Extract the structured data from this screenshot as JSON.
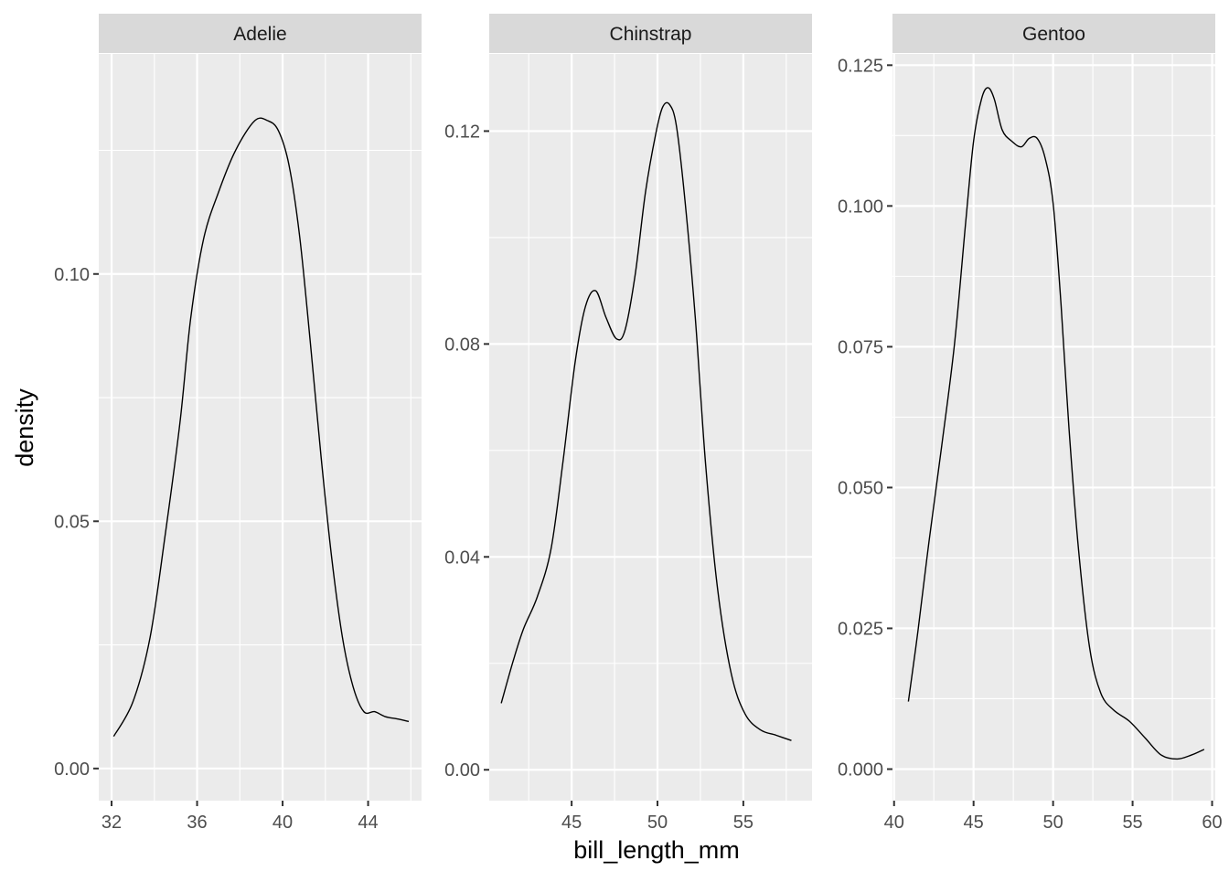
{
  "chart_data": {
    "type": "line",
    "title": "",
    "xlabel": "bill_length_mm",
    "ylabel": "density",
    "colors": {
      "panel_bg": "#EBEBEB",
      "grid": "#FFFFFF",
      "strip_bg": "#D9D9D9",
      "line": "#000000",
      "text": "#4D4D4D",
      "title_text": "#1A1A1A"
    },
    "facets": [
      {
        "label": "Adelie",
        "xlim": [
          31.4,
          46.5
        ],
        "ylim": [
          -0.0065,
          0.1445
        ],
        "x_ticks": [
          32,
          36,
          40,
          44
        ],
        "x_tick_labels": [
          "32",
          "36",
          "40",
          "44"
        ],
        "y_ticks": [
          0.0,
          0.05,
          0.1
        ],
        "y_tick_labels": [
          "0.00",
          "0.05",
          "0.10"
        ],
        "x": [
          32.1,
          33.0,
          33.8,
          34.5,
          35.2,
          35.7,
          36.3,
          37.0,
          37.8,
          38.7,
          39.3,
          39.8,
          40.3,
          40.8,
          41.3,
          41.8,
          42.3,
          42.8,
          43.3,
          43.8,
          44.3,
          44.8,
          45.4,
          45.9
        ],
        "y": [
          0.0065,
          0.0135,
          0.0265,
          0.047,
          0.07,
          0.091,
          0.107,
          0.1165,
          0.125,
          0.131,
          0.131,
          0.129,
          0.122,
          0.1075,
          0.086,
          0.063,
          0.0425,
          0.0265,
          0.0165,
          0.0115,
          0.0115,
          0.0105,
          0.01,
          0.0095
        ]
      },
      {
        "label": "Chinstrap",
        "xlim": [
          40.2,
          59.0
        ],
        "ylim": [
          -0.0058,
          0.1345
        ],
        "x_ticks": [
          45,
          50,
          55
        ],
        "x_tick_labels": [
          "45",
          "50",
          "55"
        ],
        "y_ticks": [
          0.0,
          0.04,
          0.08,
          0.12
        ],
        "y_tick_labels": [
          "0.00",
          "0.04",
          "0.08",
          "0.12"
        ],
        "x": [
          40.9,
          41.6,
          42.2,
          43.0,
          43.8,
          44.5,
          45.2,
          45.8,
          46.4,
          47.0,
          47.6,
          48.1,
          48.7,
          49.3,
          49.9,
          50.3,
          50.7,
          51.1,
          51.6,
          52.2,
          52.8,
          53.5,
          54.3,
          55.1,
          56.0,
          56.9,
          57.8
        ],
        "y": [
          0.0125,
          0.0205,
          0.0265,
          0.0325,
          0.0415,
          0.058,
          0.0765,
          0.087,
          0.09,
          0.085,
          0.081,
          0.0825,
          0.093,
          0.1085,
          0.1195,
          0.1245,
          0.125,
          0.121,
          0.107,
          0.085,
          0.0575,
          0.034,
          0.018,
          0.0105,
          0.0075,
          0.0065,
          0.0055
        ]
      },
      {
        "label": "Gentoo",
        "xlim": [
          39.9,
          60.2
        ],
        "ylim": [
          -0.0056,
          0.127
        ],
        "x_ticks": [
          40,
          45,
          50,
          55,
          60
        ],
        "x_tick_labels": [
          "40",
          "45",
          "50",
          "55",
          "60"
        ],
        "y_ticks": [
          0.0,
          0.025,
          0.05,
          0.075,
          0.1,
          0.125
        ],
        "y_tick_labels": [
          "0.000",
          "0.025",
          "0.050",
          "0.075",
          "0.100",
          "0.125"
        ],
        "x": [
          40.9,
          41.5,
          42.2,
          43.0,
          43.8,
          44.5,
          45.0,
          45.5,
          45.9,
          46.3,
          46.8,
          47.4,
          48.0,
          48.5,
          49.0,
          49.5,
          50.0,
          50.5,
          51.0,
          51.6,
          52.3,
          53.0,
          53.8,
          54.8,
          55.8,
          56.8,
          57.8,
          58.7,
          59.5
        ],
        "y": [
          0.012,
          0.0245,
          0.0405,
          0.0575,
          0.0755,
          0.097,
          0.1115,
          0.119,
          0.121,
          0.119,
          0.1135,
          0.1115,
          0.1105,
          0.112,
          0.112,
          0.1085,
          0.1005,
          0.0825,
          0.0605,
          0.039,
          0.0215,
          0.0135,
          0.0105,
          0.0085,
          0.0055,
          0.0025,
          0.0018,
          0.0025,
          0.0035
        ]
      }
    ]
  }
}
